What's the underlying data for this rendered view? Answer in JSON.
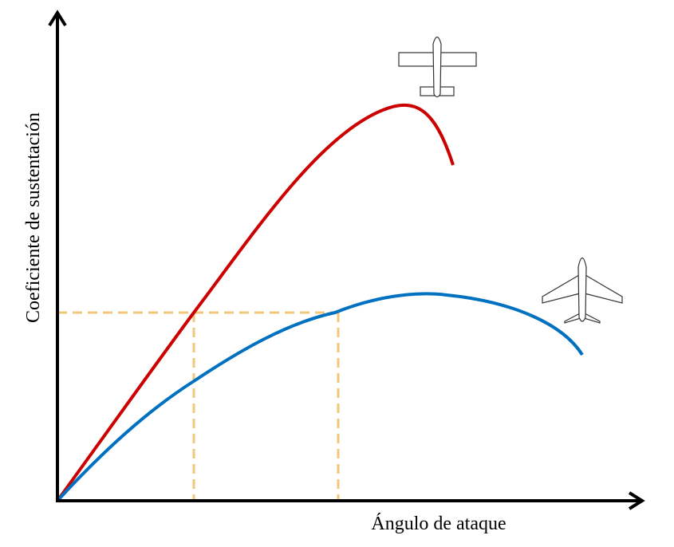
{
  "axes": {
    "x_label": "Ángulo de ataque",
    "y_label": "Coeficiente de sustentación"
  }
}
